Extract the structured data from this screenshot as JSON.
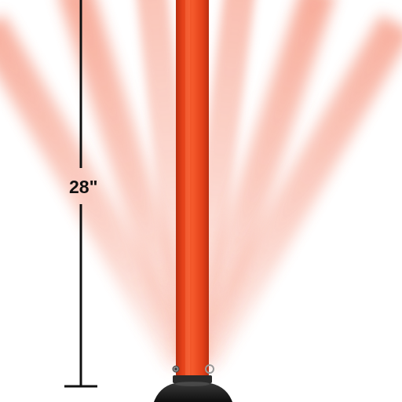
{
  "product": {
    "dimension_label": "28\"",
    "colors": {
      "post": "#f0471c",
      "post_shadow": "#b92e10",
      "post_highlight": "#ff7a4f",
      "motion_blur": "#f26a4a",
      "base": "#1c1c1c",
      "dimension_line": "#111111"
    }
  }
}
